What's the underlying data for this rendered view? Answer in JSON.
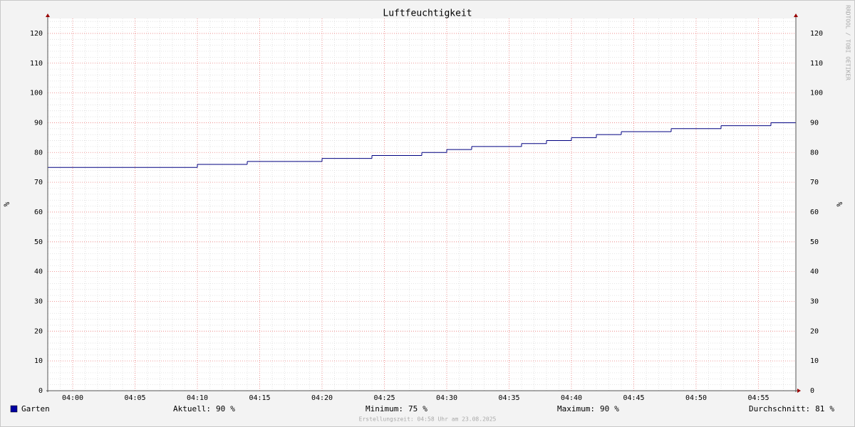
{
  "chart_data": {
    "type": "step",
    "title": "Luftfeuchtigkeit",
    "y_label": "%",
    "watermark": "RRDTOOL / TOBI OETIKER",
    "x": [
      "03:58",
      "04:10",
      "04:14",
      "04:20",
      "04:24",
      "04:28",
      "04:30",
      "04:32",
      "04:36",
      "04:38",
      "04:40",
      "04:42",
      "04:44",
      "04:48",
      "04:52",
      "04:56"
    ],
    "xlim": [
      "03:58",
      "04:58"
    ],
    "xticks": [
      "04:00",
      "04:05",
      "04:10",
      "04:15",
      "04:20",
      "04:25",
      "04:30",
      "04:35",
      "04:40",
      "04:45",
      "04:50",
      "04:55"
    ],
    "ylim": [
      0,
      125
    ],
    "yticks": [
      0,
      10,
      20,
      30,
      40,
      50,
      60,
      70,
      80,
      90,
      100,
      110,
      120
    ],
    "grid": true,
    "series": [
      {
        "name": "Garten",
        "color": "#000080",
        "legend_color": "#0000a0",
        "values": [
          75,
          76,
          77,
          78,
          79,
          80,
          81,
          82,
          83,
          84,
          85,
          86,
          87,
          88,
          89,
          90
        ]
      }
    ],
    "stats": [
      {
        "label": "Aktuell:",
        "value": 90,
        "unit": "%"
      },
      {
        "label": "Minimum:",
        "value": 75,
        "unit": "%"
      },
      {
        "label": "Maximum:",
        "value": 90,
        "unit": "%"
      },
      {
        "label": "Durchschnitt:",
        "value": 81,
        "unit": "%"
      }
    ],
    "footer": "Erstellungszeit: 04:58 Uhr am 23.08.2025"
  }
}
